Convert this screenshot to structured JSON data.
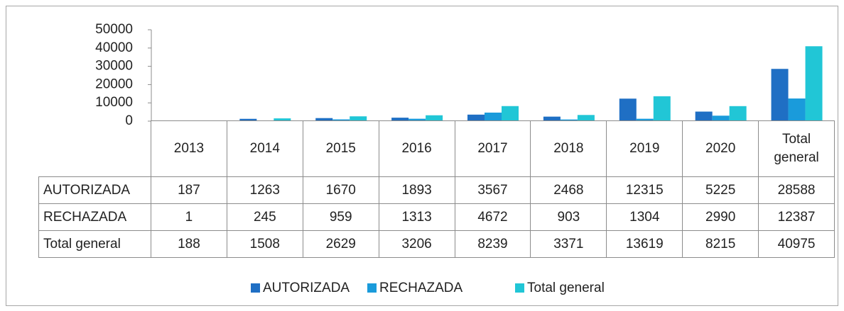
{
  "chart_data": {
    "type": "bar",
    "categories": [
      "2013",
      "2014",
      "2015",
      "2016",
      "2017",
      "2018",
      "2019",
      "2020",
      "Total general"
    ],
    "series": [
      {
        "name": "AUTORIZADA",
        "color": "#1f6fc4",
        "values": [
          187,
          1263,
          1670,
          1893,
          3567,
          2468,
          12315,
          5225,
          28588
        ]
      },
      {
        "name": "RECHAZADA",
        "color": "#1a9bdb",
        "values": [
          1,
          245,
          959,
          1313,
          4672,
          903,
          1304,
          2990,
          12387
        ]
      },
      {
        "name": "Total general",
        "color": "#21c6d6",
        "values": [
          188,
          1508,
          2629,
          3206,
          8239,
          3371,
          13619,
          8215,
          40975
        ]
      }
    ],
    "ylim": [
      0,
      50000
    ],
    "yticks": [
      0,
      10000,
      20000,
      30000,
      40000,
      50000
    ],
    "data_table": true,
    "legend": "bottom"
  }
}
